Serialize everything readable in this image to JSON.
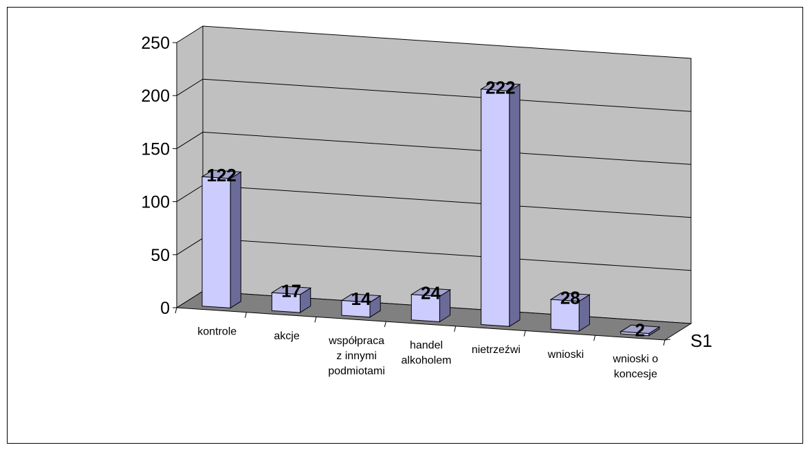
{
  "chart_data": {
    "type": "bar",
    "style": "3d-column",
    "categories": [
      [
        "kontrole"
      ],
      [
        "akcje"
      ],
      [
        "współpraca",
        "z innymi",
        "podmiotami"
      ],
      [
        "handel",
        "alkoholem"
      ],
      [
        "nietrzeźwi"
      ],
      [
        "wnioski"
      ],
      [
        "wnioski o",
        "koncesje"
      ]
    ],
    "series": [
      {
        "name": "S1",
        "values": [
          122,
          17,
          14,
          24,
          222,
          28,
          2
        ]
      }
    ],
    "ylim": [
      0,
      250
    ],
    "yticks": [
      "0",
      "50",
      "100",
      "150",
      "200",
      "250"
    ],
    "grid": true,
    "data_labels": true,
    "colors": {
      "bar_front": "#ccccff",
      "bar_side": "#6b6b99",
      "bar_top": "#a3a3cc",
      "wall": "#c0c0c0",
      "floor": "#808080",
      "grid": "#000000"
    }
  }
}
